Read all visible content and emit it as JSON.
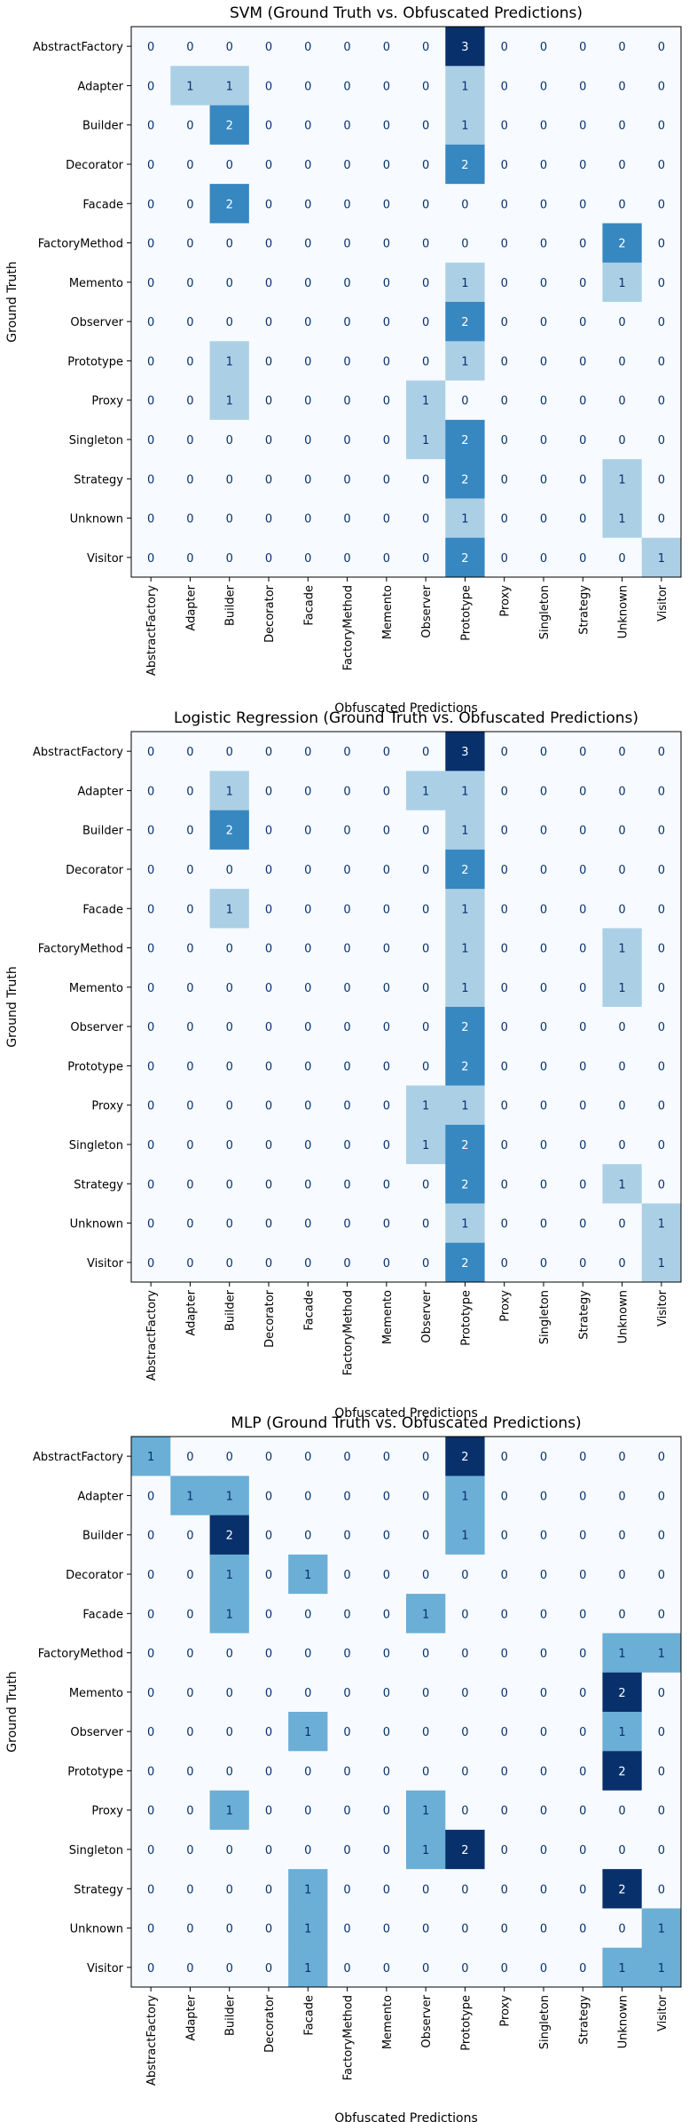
{
  "chart_data": [
    {
      "type": "heatmap",
      "title": "SVM (Ground Truth vs. Obfuscated Predictions)",
      "xlabel": "Obfuscated Predictions",
      "ylabel": "Ground Truth",
      "x_categories": [
        "AbstractFactory",
        "Adapter",
        "Builder",
        "Decorator",
        "Facade",
        "FactoryMethod",
        "Memento",
        "Observer",
        "Prototype",
        "Proxy",
        "Singleton",
        "Strategy",
        "Unknown",
        "Visitor"
      ],
      "y_categories": [
        "AbstractFactory",
        "Adapter",
        "Builder",
        "Decorator",
        "Facade",
        "FactoryMethod",
        "Memento",
        "Observer",
        "Prototype",
        "Proxy",
        "Singleton",
        "Strategy",
        "Unknown",
        "Visitor"
      ],
      "values": [
        [
          0,
          0,
          0,
          0,
          0,
          0,
          0,
          0,
          3,
          0,
          0,
          0,
          0,
          0
        ],
        [
          0,
          1,
          1,
          0,
          0,
          0,
          0,
          0,
          1,
          0,
          0,
          0,
          0,
          0
        ],
        [
          0,
          0,
          2,
          0,
          0,
          0,
          0,
          0,
          1,
          0,
          0,
          0,
          0,
          0
        ],
        [
          0,
          0,
          0,
          0,
          0,
          0,
          0,
          0,
          2,
          0,
          0,
          0,
          0,
          0
        ],
        [
          0,
          0,
          2,
          0,
          0,
          0,
          0,
          0,
          0,
          0,
          0,
          0,
          0,
          0
        ],
        [
          0,
          0,
          0,
          0,
          0,
          0,
          0,
          0,
          0,
          0,
          0,
          0,
          2,
          0
        ],
        [
          0,
          0,
          0,
          0,
          0,
          0,
          0,
          0,
          1,
          0,
          0,
          0,
          1,
          0
        ],
        [
          0,
          0,
          0,
          0,
          0,
          0,
          0,
          0,
          2,
          0,
          0,
          0,
          0,
          0
        ],
        [
          0,
          0,
          1,
          0,
          0,
          0,
          0,
          0,
          1,
          0,
          0,
          0,
          0,
          0
        ],
        [
          0,
          0,
          1,
          0,
          0,
          0,
          0,
          1,
          0,
          0,
          0,
          0,
          0,
          0
        ],
        [
          0,
          0,
          0,
          0,
          0,
          0,
          0,
          1,
          2,
          0,
          0,
          0,
          0,
          0
        ],
        [
          0,
          0,
          0,
          0,
          0,
          0,
          0,
          0,
          2,
          0,
          0,
          0,
          1,
          0
        ],
        [
          0,
          0,
          0,
          0,
          0,
          0,
          0,
          0,
          1,
          0,
          0,
          0,
          1,
          0
        ],
        [
          0,
          0,
          0,
          0,
          0,
          0,
          0,
          0,
          2,
          0,
          0,
          0,
          0,
          1
        ]
      ],
      "colormap": "Blues"
    },
    {
      "type": "heatmap",
      "title": "Logistic Regression (Ground Truth vs. Obfuscated Predictions)",
      "xlabel": "Obfuscated Predictions",
      "ylabel": "Ground Truth",
      "x_categories": [
        "AbstractFactory",
        "Adapter",
        "Builder",
        "Decorator",
        "Facade",
        "FactoryMethod",
        "Memento",
        "Observer",
        "Prototype",
        "Proxy",
        "Singleton",
        "Strategy",
        "Unknown",
        "Visitor"
      ],
      "y_categories": [
        "AbstractFactory",
        "Adapter",
        "Builder",
        "Decorator",
        "Facade",
        "FactoryMethod",
        "Memento",
        "Observer",
        "Prototype",
        "Proxy",
        "Singleton",
        "Strategy",
        "Unknown",
        "Visitor"
      ],
      "values": [
        [
          0,
          0,
          0,
          0,
          0,
          0,
          0,
          0,
          3,
          0,
          0,
          0,
          0,
          0
        ],
        [
          0,
          0,
          1,
          0,
          0,
          0,
          0,
          1,
          1,
          0,
          0,
          0,
          0,
          0
        ],
        [
          0,
          0,
          2,
          0,
          0,
          0,
          0,
          0,
          1,
          0,
          0,
          0,
          0,
          0
        ],
        [
          0,
          0,
          0,
          0,
          0,
          0,
          0,
          0,
          2,
          0,
          0,
          0,
          0,
          0
        ],
        [
          0,
          0,
          1,
          0,
          0,
          0,
          0,
          0,
          1,
          0,
          0,
          0,
          0,
          0
        ],
        [
          0,
          0,
          0,
          0,
          0,
          0,
          0,
          0,
          1,
          0,
          0,
          0,
          1,
          0
        ],
        [
          0,
          0,
          0,
          0,
          0,
          0,
          0,
          0,
          1,
          0,
          0,
          0,
          1,
          0
        ],
        [
          0,
          0,
          0,
          0,
          0,
          0,
          0,
          0,
          2,
          0,
          0,
          0,
          0,
          0
        ],
        [
          0,
          0,
          0,
          0,
          0,
          0,
          0,
          0,
          2,
          0,
          0,
          0,
          0,
          0
        ],
        [
          0,
          0,
          0,
          0,
          0,
          0,
          0,
          1,
          1,
          0,
          0,
          0,
          0,
          0
        ],
        [
          0,
          0,
          0,
          0,
          0,
          0,
          0,
          1,
          2,
          0,
          0,
          0,
          0,
          0
        ],
        [
          0,
          0,
          0,
          0,
          0,
          0,
          0,
          0,
          2,
          0,
          0,
          0,
          1,
          0
        ],
        [
          0,
          0,
          0,
          0,
          0,
          0,
          0,
          0,
          1,
          0,
          0,
          0,
          0,
          1
        ],
        [
          0,
          0,
          0,
          0,
          0,
          0,
          0,
          0,
          2,
          0,
          0,
          0,
          0,
          1
        ]
      ],
      "colormap": "Blues"
    },
    {
      "type": "heatmap",
      "title": "MLP (Ground Truth vs. Obfuscated Predictions)",
      "xlabel": "Obfuscated Predictions",
      "ylabel": "Ground Truth",
      "x_categories": [
        "AbstractFactory",
        "Adapter",
        "Builder",
        "Decorator",
        "Facade",
        "FactoryMethod",
        "Memento",
        "Observer",
        "Prototype",
        "Proxy",
        "Singleton",
        "Strategy",
        "Unknown",
        "Visitor"
      ],
      "y_categories": [
        "AbstractFactory",
        "Adapter",
        "Builder",
        "Decorator",
        "Facade",
        "FactoryMethod",
        "Memento",
        "Observer",
        "Prototype",
        "Proxy",
        "Singleton",
        "Strategy",
        "Unknown",
        "Visitor"
      ],
      "values": [
        [
          1,
          0,
          0,
          0,
          0,
          0,
          0,
          0,
          2,
          0,
          0,
          0,
          0,
          0
        ],
        [
          0,
          1,
          1,
          0,
          0,
          0,
          0,
          0,
          1,
          0,
          0,
          0,
          0,
          0
        ],
        [
          0,
          0,
          2,
          0,
          0,
          0,
          0,
          0,
          1,
          0,
          0,
          0,
          0,
          0
        ],
        [
          0,
          0,
          1,
          0,
          1,
          0,
          0,
          0,
          0,
          0,
          0,
          0,
          0,
          0
        ],
        [
          0,
          0,
          1,
          0,
          0,
          0,
          0,
          1,
          0,
          0,
          0,
          0,
          0,
          0
        ],
        [
          0,
          0,
          0,
          0,
          0,
          0,
          0,
          0,
          0,
          0,
          0,
          0,
          1,
          1
        ],
        [
          0,
          0,
          0,
          0,
          0,
          0,
          0,
          0,
          0,
          0,
          0,
          0,
          2,
          0
        ],
        [
          0,
          0,
          0,
          0,
          1,
          0,
          0,
          0,
          0,
          0,
          0,
          0,
          1,
          0
        ],
        [
          0,
          0,
          0,
          0,
          0,
          0,
          0,
          0,
          0,
          0,
          0,
          0,
          2,
          0
        ],
        [
          0,
          0,
          1,
          0,
          0,
          0,
          0,
          1,
          0,
          0,
          0,
          0,
          0,
          0
        ],
        [
          0,
          0,
          0,
          0,
          0,
          0,
          0,
          1,
          2,
          0,
          0,
          0,
          0,
          0
        ],
        [
          0,
          0,
          0,
          0,
          1,
          0,
          0,
          0,
          0,
          0,
          0,
          0,
          2,
          0
        ],
        [
          0,
          0,
          0,
          0,
          1,
          0,
          0,
          0,
          0,
          0,
          0,
          0,
          0,
          1
        ],
        [
          0,
          0,
          0,
          0,
          1,
          0,
          0,
          0,
          0,
          0,
          0,
          0,
          1,
          1
        ]
      ],
      "colormap": "Blues"
    }
  ]
}
